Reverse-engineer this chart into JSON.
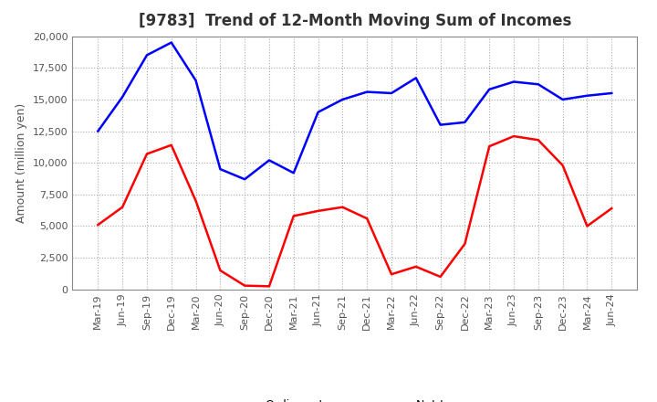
{
  "title": "[9783]  Trend of 12-Month Moving Sum of Incomes",
  "ylabel": "Amount (million yen)",
  "x_labels": [
    "Mar-19",
    "Jun-19",
    "Sep-19",
    "Dec-19",
    "Mar-20",
    "Jun-20",
    "Sep-20",
    "Dec-20",
    "Mar-21",
    "Jun-21",
    "Sep-21",
    "Dec-21",
    "Mar-22",
    "Jun-22",
    "Sep-22",
    "Dec-22",
    "Mar-23",
    "Jun-23",
    "Sep-23",
    "Dec-23",
    "Mar-24",
    "Jun-24"
  ],
  "ordinary_income": [
    12500,
    15200,
    18500,
    19500,
    16500,
    9500,
    8700,
    10200,
    9200,
    14000,
    15000,
    15600,
    15500,
    16700,
    13000,
    13200,
    15800,
    16400,
    16200,
    15000,
    15300,
    15500
  ],
  "net_income": [
    5100,
    6500,
    10700,
    11400,
    7000,
    1500,
    300,
    250,
    5800,
    6200,
    6500,
    5600,
    1200,
    1800,
    1000,
    3600,
    11300,
    12100,
    11800,
    9800,
    5000,
    6400
  ],
  "ordinary_color": "#0000FF",
  "net_color": "#FF0000",
  "ylim": [
    0,
    20000
  ],
  "yticks": [
    0,
    2500,
    5000,
    7500,
    10000,
    12500,
    15000,
    17500,
    20000
  ],
  "background_color": "#FFFFFF",
  "grid_color": "#AAAAAA",
  "title_fontsize": 12,
  "axis_label_fontsize": 9,
  "tick_fontsize": 8,
  "legend_fontsize": 9,
  "line_width": 1.8
}
